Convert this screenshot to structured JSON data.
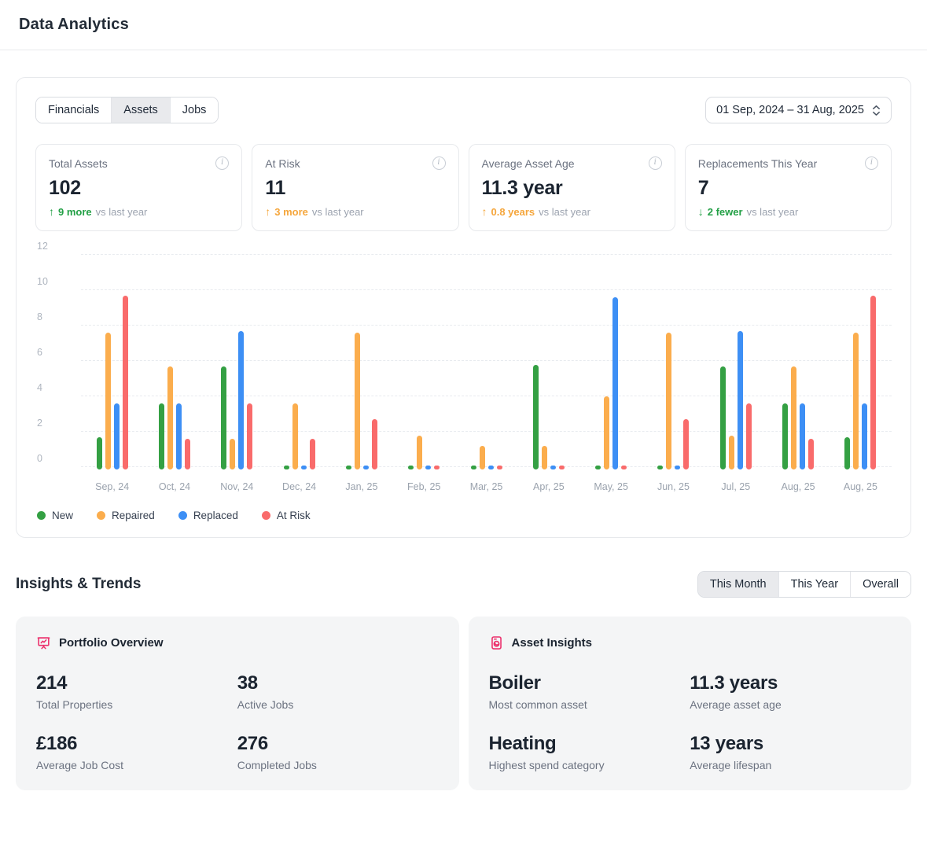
{
  "header": {
    "title": "Data Analytics"
  },
  "colors": {
    "green": "#23A046",
    "amber": "#F5A63C",
    "pink": "#EC2F6B",
    "bar_new": "#34A043",
    "bar_repaired": "#FBAD4D",
    "bar_replaced": "#3D8FF5",
    "bar_at_risk": "#F96B6B"
  },
  "panel": {
    "tabs": [
      {
        "label": "Financials",
        "selected": false
      },
      {
        "label": "Assets",
        "selected": true
      },
      {
        "label": "Jobs",
        "selected": false
      }
    ],
    "date_range": "01 Sep, 2024 – 31 Aug, 2025",
    "stats": [
      {
        "label": "Total Assets",
        "value": "102",
        "direction": "up",
        "tone": "green",
        "delta": "9 more",
        "suffix": "vs last year"
      },
      {
        "label": "At Risk",
        "value": "11",
        "direction": "up",
        "tone": "amber",
        "delta": "3 more",
        "suffix": "vs last year"
      },
      {
        "label": "Average Asset Age",
        "value": "11.3 year",
        "direction": "up",
        "tone": "amber",
        "delta": "0.8 years",
        "suffix": "vs last year"
      },
      {
        "label": "Replacements This Year",
        "value": "7",
        "direction": "down",
        "tone": "green",
        "delta": "2 fewer",
        "suffix": "vs last year"
      }
    ]
  },
  "chart_data": {
    "type": "bar",
    "title": "",
    "xlabel": "",
    "ylabel": "",
    "ylim": [
      0,
      12
    ],
    "yticks": [
      0,
      2,
      4,
      6,
      8,
      10,
      12
    ],
    "grid": true,
    "legend_position": "bottom-left",
    "categories": [
      "Sep, 24",
      "Oct, 24",
      "Nov, 24",
      "Dec, 24",
      "Jan, 25",
      "Feb, 25",
      "Mar, 25",
      "Apr, 25",
      "May, 25",
      "Jun, 25",
      "Jul, 25",
      "Aug, 25",
      "Aug, 25"
    ],
    "series": [
      {
        "name": "New",
        "color": "#34A043",
        "values": [
          1.7,
          3.6,
          5.7,
          0.1,
          0.1,
          0.1,
          0.1,
          5.8,
          0.1,
          0.1,
          5.7,
          3.6,
          1.7
        ]
      },
      {
        "name": "Repaired",
        "color": "#FBAD4D",
        "values": [
          7.6,
          5.7,
          1.6,
          3.6,
          7.6,
          1.8,
          1.2,
          1.2,
          4.0,
          7.6,
          1.8,
          5.7,
          7.6
        ]
      },
      {
        "name": "Replaced",
        "color": "#3D8FF5",
        "values": [
          3.6,
          3.6,
          7.7,
          0.1,
          0.1,
          0.1,
          0.1,
          0.1,
          9.6,
          0.1,
          7.7,
          3.6,
          3.6
        ]
      },
      {
        "name": "At Risk",
        "color": "#F96B6B",
        "values": [
          9.7,
          1.6,
          3.6,
          1.6,
          2.7,
          0.1,
          0.1,
          0.1,
          0.1,
          2.7,
          3.6,
          1.6,
          9.7
        ]
      }
    ]
  },
  "insights": {
    "title": "Insights & Trends",
    "toggle": [
      {
        "label": "This Month",
        "selected": true
      },
      {
        "label": "This Year",
        "selected": false
      },
      {
        "label": "Overall",
        "selected": false
      }
    ],
    "cards": [
      {
        "title": "Portfolio Overview",
        "icon": "presentation-chart-icon",
        "stats": [
          {
            "value": "214",
            "label": "Total Properties"
          },
          {
            "value": "38",
            "label": "Active Jobs"
          },
          {
            "value": "£186",
            "label": "Average Job Cost"
          },
          {
            "value": "276",
            "label": "Completed Jobs"
          }
        ]
      },
      {
        "title": "Asset Insights",
        "icon": "washing-machine-icon",
        "stats": [
          {
            "value": "Boiler",
            "label": "Most common asset"
          },
          {
            "value": "11.3 years",
            "label": "Average asset age"
          },
          {
            "value": "Heating",
            "label": "Highest spend category"
          },
          {
            "value": "13 years",
            "label": "Average lifespan"
          }
        ]
      }
    ]
  }
}
